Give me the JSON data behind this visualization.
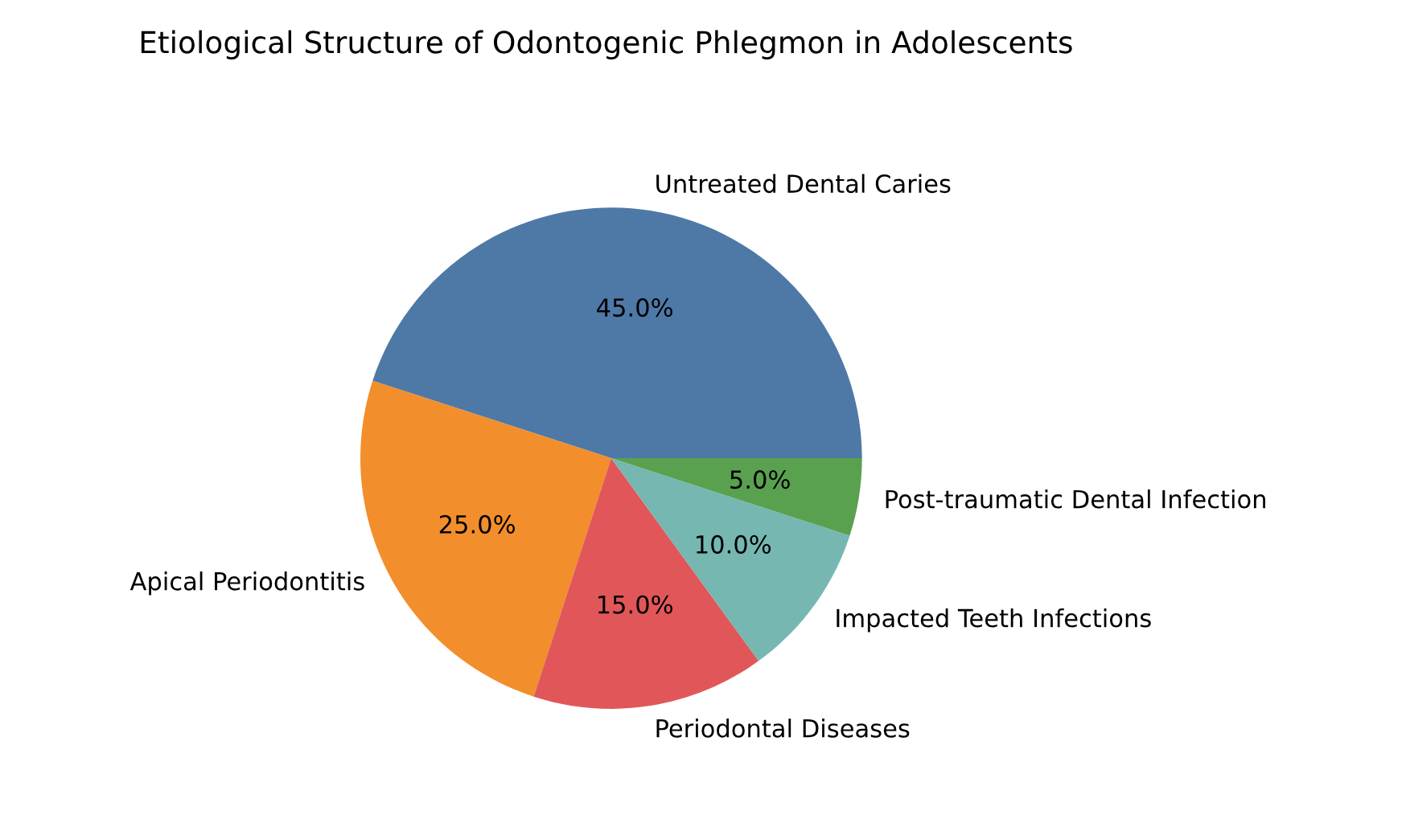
{
  "chart_data": {
    "type": "pie",
    "title": "Etiological Structure of Odontogenic Phlegmon in Adolescents",
    "categories": [
      "Untreated Dental Caries",
      "Apical Periodontitis",
      "Periodontal Diseases",
      "Impacted Teeth Infections",
      "Post-traumatic Dental Infection"
    ],
    "values": [
      45,
      25,
      15,
      10,
      5
    ],
    "colors": [
      "#4e79a7",
      "#f28e2b",
      "#e15759",
      "#76b7b2",
      "#59a14f"
    ],
    "value_labels": [
      "45.0%",
      "25.0%",
      "15.0%",
      "10.0%",
      "5.0%"
    ]
  }
}
